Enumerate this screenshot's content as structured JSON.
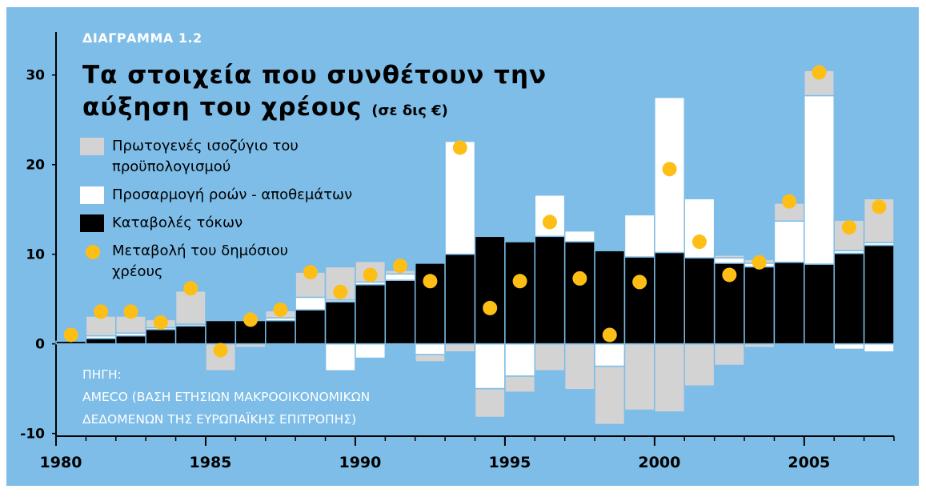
{
  "chart_data": {
    "type": "bar",
    "label": "ΔΙΑΓΡΑΜΜΑ 1.2",
    "title": "Τα στοιχεία που συνθέτουν την αύξηση του χρέους",
    "subtitle": "(σε δις €)",
    "source_label": "ΠΗΓΗ:",
    "source": "AMECO (ΒΑΣΗ ΕΤΗΣΙΩΝ ΜΑΚΡΟΟΙΚΟΝΟΜΙΚΩΝ ΔΕΔΟΜΕΝΩΝ ΤΗΣ ΕΥΡΩΠΑΪΚΗΣ ΕΠΙΤΡΟΠΗΣ)",
    "x": [
      1980,
      1981,
      1982,
      1983,
      1984,
      1985,
      1986,
      1987,
      1988,
      1989,
      1990,
      1991,
      1992,
      1993,
      1994,
      1995,
      1996,
      1997,
      1998,
      1999,
      2000,
      2001,
      2002,
      2003,
      2004,
      2005,
      2006,
      2007
    ],
    "xlim": [
      1980,
      2008
    ],
    "xticks": [
      1980,
      1985,
      1990,
      1995,
      2000,
      2005
    ],
    "ylim": [
      -10.3,
      34.8
    ],
    "yticks": [
      -10,
      0,
      10,
      20,
      30
    ],
    "series": [
      {
        "name": "Πρωτογενές ισοζύγιο του προϋπολογισμού",
        "type": "bar",
        "color": "#d3d3d3",
        "values": [
          0,
          2.2,
          1.9,
          0.9,
          3.7,
          0,
          0,
          0.8,
          2.8,
          3.7,
          2.3,
          0.4,
          0,
          0,
          0,
          0,
          0,
          0,
          0,
          0,
          0,
          0,
          0.3,
          0.4,
          2.0,
          2.8,
          3.4,
          4.9
        ],
        "negative_values": [
          0,
          0,
          0,
          0,
          0,
          -3.0,
          -0.4,
          0,
          0,
          0,
          0,
          0,
          -0.8,
          -0.9,
          -3.2,
          -1.8,
          -3.0,
          -5.1,
          -6.5,
          -7.4,
          -7.6,
          -4.7,
          -2.4,
          -0.4,
          0,
          0,
          0,
          0
        ]
      },
      {
        "name": "Προσαρμογή ροών - αποθεμάτων",
        "type": "bar",
        "color": "#ffffff",
        "values": [
          0,
          0.3,
          0.3,
          0.2,
          0.2,
          0,
          0,
          0.3,
          1.4,
          0.2,
          0.3,
          0.7,
          0,
          12.6,
          0,
          0,
          4.6,
          1.2,
          0,
          4.7,
          17.3,
          6.6,
          0.6,
          0.4,
          4.6,
          18.8,
          0.3,
          0.3
        ],
        "negative_values": [
          0,
          0,
          0,
          0,
          0,
          0,
          0,
          0,
          0,
          -3.0,
          -1.6,
          0,
          -1.2,
          0,
          -5.0,
          -3.6,
          0,
          0,
          -2.5,
          0,
          0,
          0,
          0,
          0,
          0,
          0,
          -0.6,
          -0.9
        ]
      },
      {
        "name": "Καταβολές τόκων",
        "type": "bar",
        "color": "#000000",
        "values": [
          0.3,
          0.6,
          0.9,
          1.6,
          2.0,
          2.6,
          2.6,
          2.6,
          3.8,
          4.7,
          6.6,
          7.1,
          9.0,
          10.0,
          12.0,
          11.4,
          12.0,
          11.4,
          10.4,
          9.7,
          10.2,
          9.6,
          9.0,
          8.6,
          9.1,
          8.9,
          10.1,
          11.0
        ]
      },
      {
        "name": "Μεταβολή του δημόσιου χρέους",
        "type": "scatter",
        "color": "#fdbe16",
        "values": [
          1.0,
          3.6,
          3.6,
          2.4,
          6.2,
          -0.7,
          2.7,
          3.8,
          8.0,
          5.8,
          7.7,
          8.7,
          7.0,
          21.9,
          4.0,
          7.0,
          13.6,
          7.3,
          1.0,
          6.9,
          19.5,
          11.4,
          7.7,
          9.1,
          15.9,
          30.3,
          13.0,
          15.3
        ]
      }
    ]
  }
}
